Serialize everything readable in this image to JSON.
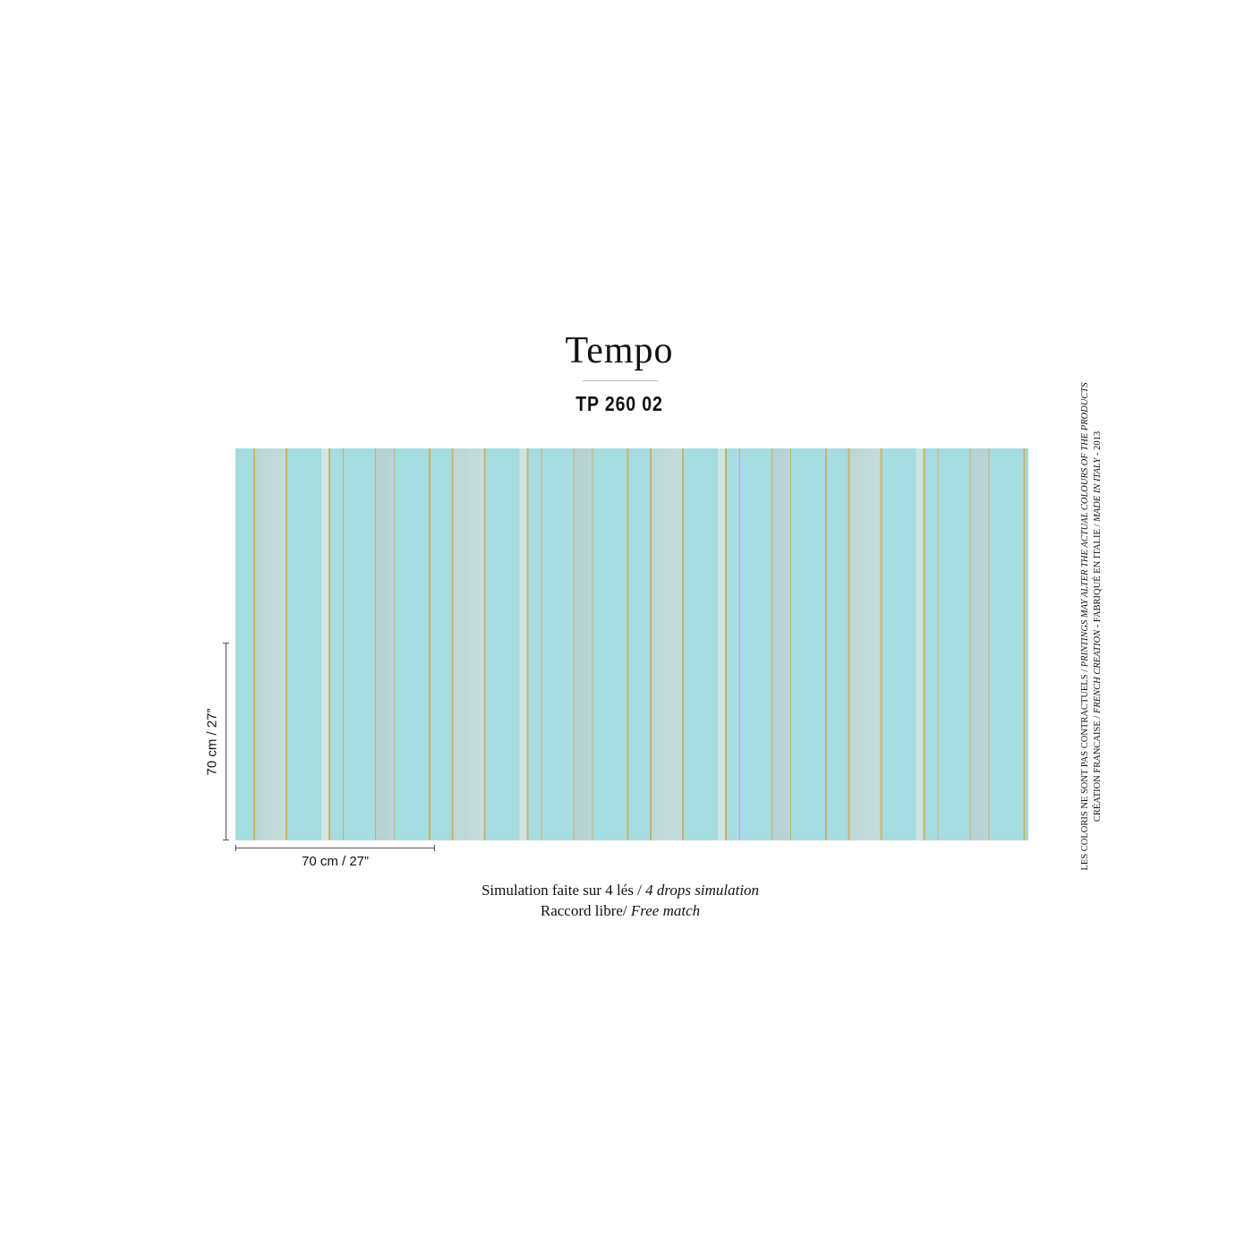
{
  "header": {
    "title": "Tempo",
    "reference": "TP 260 02"
  },
  "swatch": {
    "colors": {
      "base": "#a6dbe0",
      "gold": "#c7b46a",
      "pale": "#c6dcdc"
    },
    "drops": 4
  },
  "dimensions": {
    "height_label": "70 cm / 27”",
    "width_label": "70 cm / 27”"
  },
  "notes": {
    "line1_fr": "Simulation faite sur 4 lés /",
    "line1_en": "4 drops simulation",
    "line2_fr": "Raccord libre/",
    "line2_en": "Free match"
  },
  "disclaimer": {
    "line1_fr": "LES COLORIS NE SONT PAS CONTRACTUELS /",
    "line1_en": "PRINTINGS MAY ALTER THE ACTUAL COLOURS OF THE PRODUCTS",
    "line2_a": "CRÉATION FRANCAISE /",
    "line2_b": "FRENCH CREATION",
    "line2_c": "- FABRIQUÉ EN ITALIE /",
    "line2_d": "MADE IN ITALY",
    "line2_e": "- 2013"
  }
}
